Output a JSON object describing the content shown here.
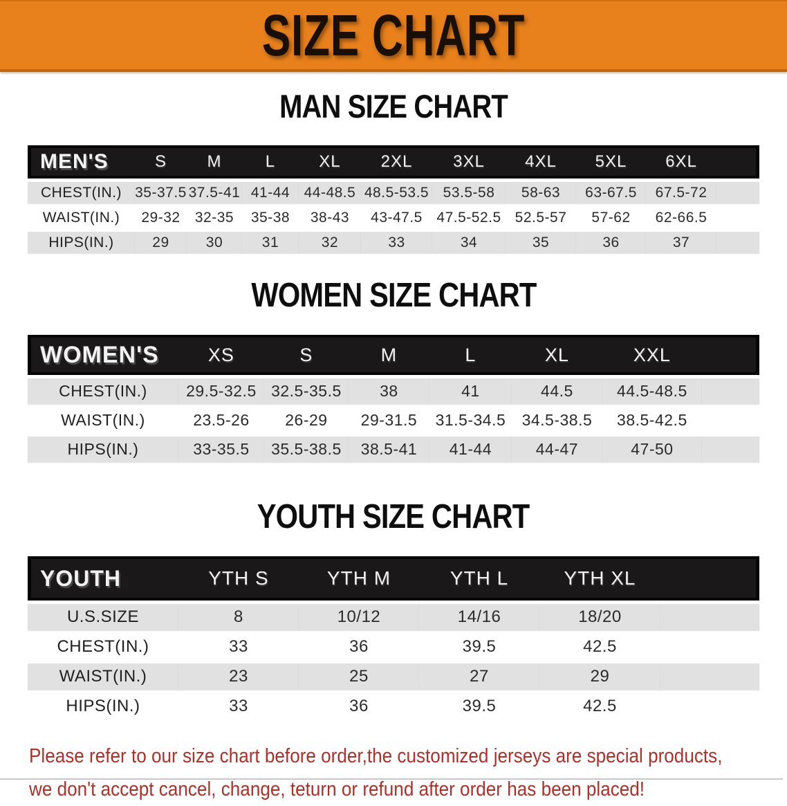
{
  "banner": {
    "title": "SIZE CHART"
  },
  "colors": {
    "banner_orange": "#E8811C",
    "banner_border": "#C2660E",
    "header_bar_black": "#1A1818",
    "row_gray": "#E1E1E1",
    "row_white": "#FFFFFF",
    "note_red": "#B22F28",
    "banner_text": "#181007"
  },
  "men": {
    "heading": "MAN SIZE CHART",
    "columns": [
      "MEN'S",
      "S",
      "M",
      "L",
      "XL",
      "2XL",
      "3XL",
      "4XL",
      "5XL",
      "6XL"
    ],
    "rows": [
      {
        "label": "CHEST(IN.)",
        "values": [
          "35-37.5",
          "37.5-41",
          "41-44",
          "44-48.5",
          "48.5-53.5",
          "53.5-58",
          "58-63",
          "63-67.5",
          "67.5-72"
        ]
      },
      {
        "label": "WAIST(IN.)",
        "values": [
          "29-32",
          "32-35",
          "35-38",
          "38-43",
          "43-47.5",
          "47.5-52.5",
          "52.5-57",
          "57-62",
          "62-66.5"
        ]
      },
      {
        "label": "HIPS(IN.)",
        "values": [
          "29",
          "30",
          "31",
          "32",
          "33",
          "34",
          "35",
          "36",
          "37"
        ]
      }
    ]
  },
  "women": {
    "heading": "WOMEN SIZE CHART",
    "columns": [
      "WOMEN'S",
      "XS",
      "S",
      "M",
      "L",
      "XL",
      "XXL"
    ],
    "rows": [
      {
        "label": "CHEST(IN.)",
        "values": [
          "29.5-32.5",
          "32.5-35.5",
          "38",
          "41",
          "44.5",
          "44.5-48.5"
        ]
      },
      {
        "label": "WAIST(IN.)",
        "values": [
          "23.5-26",
          "26-29",
          "29-31.5",
          "31.5-34.5",
          "34.5-38.5",
          "38.5-42.5"
        ]
      },
      {
        "label": "HIPS(IN.)",
        "values": [
          "33-35.5",
          "35.5-38.5",
          "38.5-41",
          "41-44",
          "44-47",
          "47-50"
        ]
      }
    ]
  },
  "youth": {
    "heading": "YOUTH SIZE CHART",
    "columns": [
      "YOUTH",
      "YTH S",
      "YTH M",
      "YTH L",
      "YTH XL"
    ],
    "rows": [
      {
        "label": "U.S.SIZE",
        "values": [
          "8",
          "10/12",
          "14/16",
          "18/20"
        ]
      },
      {
        "label": "CHEST(IN.)",
        "values": [
          "33",
          "36",
          "39.5",
          "42.5"
        ]
      },
      {
        "label": "WAIST(IN.)",
        "values": [
          "23",
          "25",
          "27",
          "29"
        ]
      },
      {
        "label": "HIPS(IN.)",
        "values": [
          "33",
          "36",
          "39.5",
          "42.5"
        ]
      }
    ]
  },
  "note": {
    "line1": "Please refer to our size chart before order,the customized jerseys are special products,",
    "line2": "we don't accept cancel, change, teturn or refund after order has been placed!"
  }
}
